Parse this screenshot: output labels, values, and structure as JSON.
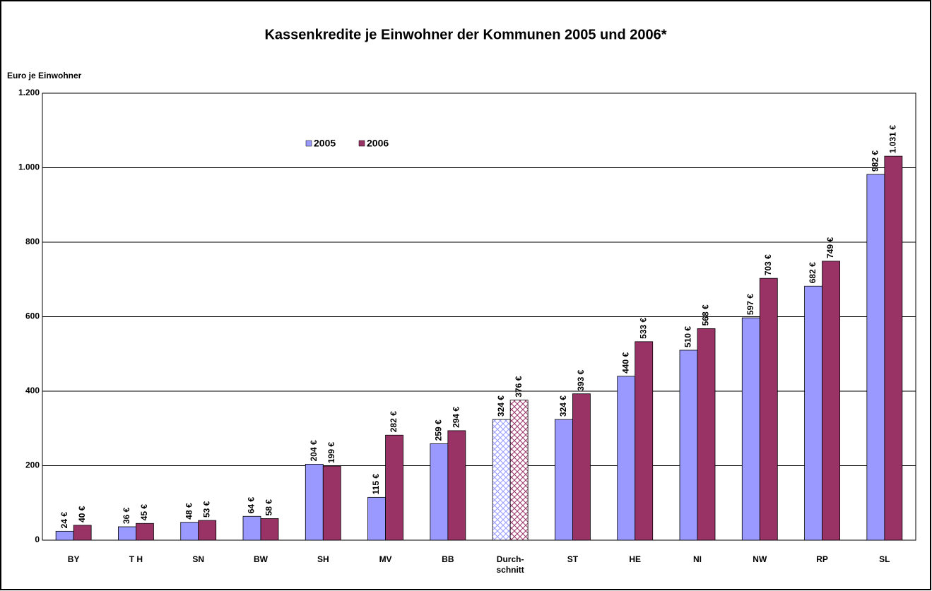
{
  "chart_data": {
    "type": "bar",
    "title": "Kassenkredite je Einwohner der Kommunen 2005 und 2006*",
    "y_label": "Euro je Einwohner",
    "categories": [
      "BY",
      "T H",
      "SN",
      "BW",
      "SH",
      "MV",
      "BB",
      "Durch-\nschnitt",
      "ST",
      "HE",
      "NI",
      "NW",
      "RP",
      "SL"
    ],
    "series": [
      {
        "name": "2005",
        "color": "#9999ff",
        "values": [
          24,
          36,
          48,
          64,
          204,
          115,
          259,
          324,
          324,
          440,
          510,
          597,
          682,
          982
        ],
        "value_labels": [
          "24 €",
          "36 €",
          "48 €",
          "64 €",
          "204 €",
          "115 €",
          "259 €",
          "324 €",
          "324 €",
          "440 €",
          "510 €",
          "597 €",
          "682 €",
          "982 €"
        ]
      },
      {
        "name": "2006",
        "color": "#993366",
        "values": [
          40,
          45,
          53,
          58,
          199,
          282,
          294,
          376,
          393,
          533,
          568,
          703,
          749,
          1031
        ],
        "value_labels": [
          "40 €",
          "45 €",
          "53 €",
          "58 €",
          "199 €",
          "282 €",
          "294 €",
          "376 €",
          "393 €",
          "533 €",
          "568 €",
          "703 €",
          "749 €",
          "1.031 €"
        ]
      }
    ],
    "hatched_index": 7,
    "ylim": [
      0,
      1200
    ],
    "yticks": [
      0,
      200,
      400,
      600,
      800,
      {
        "value": 1000,
        "label": "1.000"
      },
      {
        "value": 1200,
        "label": "1.200"
      }
    ],
    "grid": true
  }
}
